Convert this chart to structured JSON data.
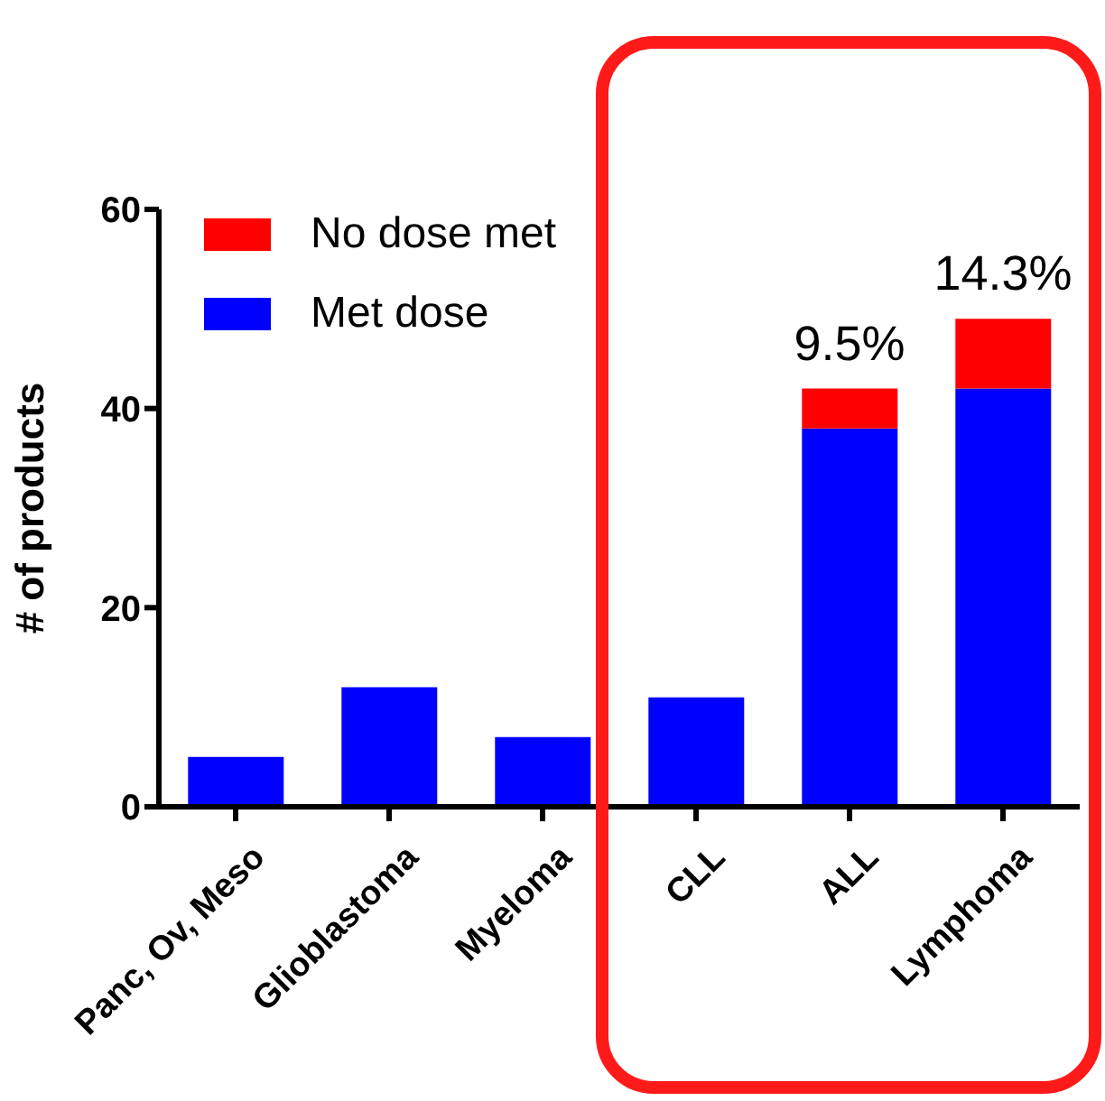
{
  "chart_data": {
    "type": "bar",
    "ylabel": "# of products",
    "categories": [
      "Panc, Ov, Meso",
      "Glioblastoma",
      "Myeloma",
      "CLL",
      "ALL",
      "Lymphoma"
    ],
    "stacked": true,
    "ylim": [
      0,
      60
    ],
    "yticks": [
      0,
      20,
      40,
      60
    ],
    "legend": "top left",
    "series": [
      {
        "name": "Met dose",
        "color": "#0000ff",
        "values": [
          5,
          12,
          7,
          11,
          38,
          42
        ]
      },
      {
        "name": "No dose met",
        "color": "#ff0000",
        "values": [
          0,
          0,
          0,
          0,
          4,
          7
        ]
      }
    ],
    "annotations": [
      {
        "text": "9.5%",
        "x": "ALL",
        "y": 42
      },
      {
        "text": "14.3%",
        "x": "Lymphoma",
        "y": 49
      }
    ]
  }
}
